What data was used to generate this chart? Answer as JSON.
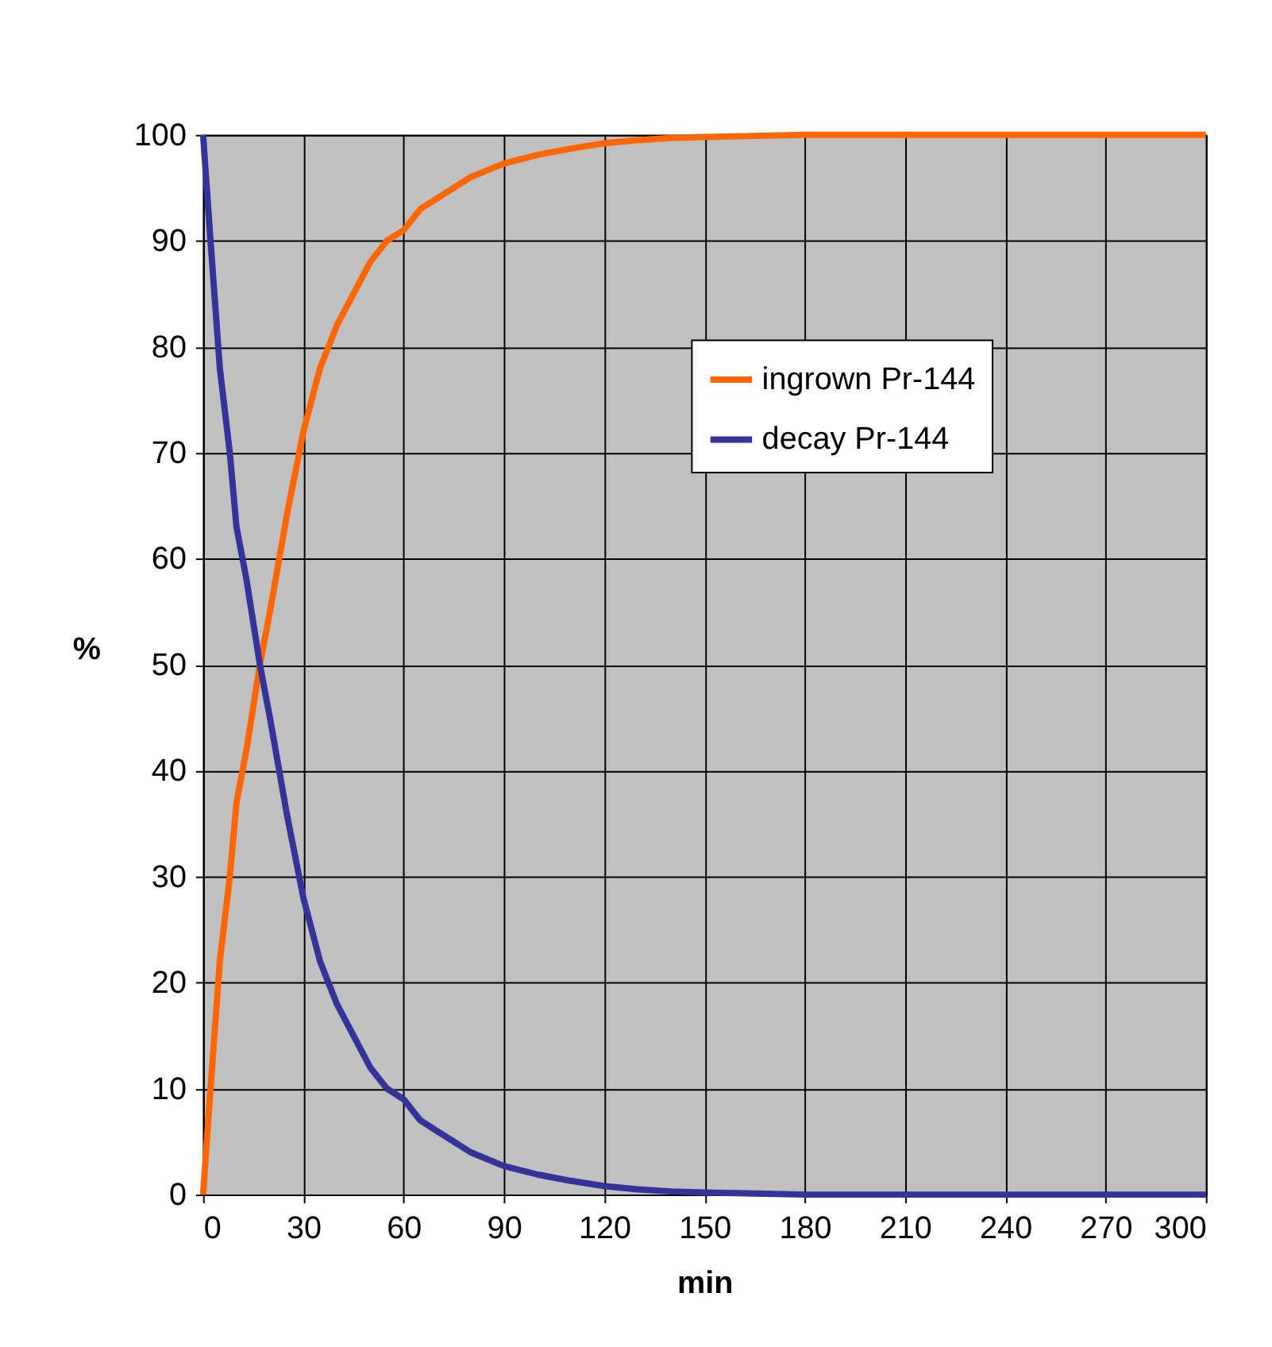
{
  "chart_data": {
    "type": "line",
    "xlabel": "min",
    "ylabel": "%",
    "x": [
      0,
      2,
      5,
      8,
      10,
      13,
      17,
      20,
      25,
      30,
      35,
      40,
      45,
      50,
      55,
      60,
      65,
      70,
      75,
      80,
      90,
      100,
      110,
      120,
      130,
      140,
      150,
      165,
      180,
      210,
      240,
      270,
      300
    ],
    "series": [
      {
        "name": "ingrown Pr-144",
        "color": "#ff6600",
        "values": [
          0,
          9,
          22,
          30,
          37,
          42,
          50,
          55,
          64,
          72,
          78,
          82,
          85,
          88,
          90,
          91,
          93,
          94,
          95,
          96,
          97.3,
          98.1,
          98.7,
          99.2,
          99.5,
          99.7,
          99.8,
          99.9,
          100,
          100,
          100,
          100,
          100
        ]
      },
      {
        "name": "decay Pr-144",
        "color": "#333399",
        "values": [
          100,
          91,
          78,
          70,
          63,
          58,
          50,
          45,
          36,
          28,
          22,
          18,
          15,
          12,
          10,
          9,
          7,
          6,
          5,
          4,
          2.7,
          1.9,
          1.3,
          0.8,
          0.5,
          0.3,
          0.2,
          0.1,
          0,
          0,
          0,
          0,
          0
        ]
      }
    ],
    "xlim": [
      0,
      300
    ],
    "xticks": [
      0,
      30,
      60,
      90,
      120,
      150,
      180,
      210,
      240,
      270,
      300
    ],
    "ylim": [
      0,
      100
    ],
    "yticks": [
      0,
      10,
      20,
      30,
      40,
      50,
      60,
      70,
      80,
      90,
      100
    ],
    "grid": true,
    "legend": "top right",
    "marker": "none",
    "line_style": "solid"
  }
}
